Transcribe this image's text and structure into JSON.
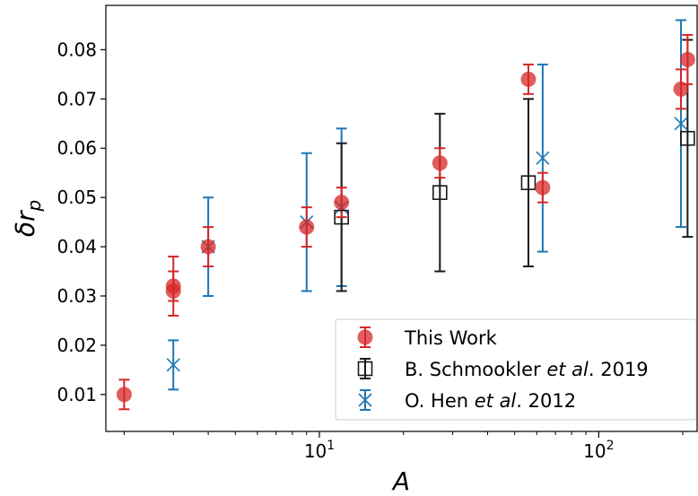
{
  "chart_data": {
    "type": "scatter",
    "title": "",
    "xlabel": "A",
    "ylabel": "δr_p",
    "xscale": "log",
    "xlim": [
      1.72,
      225
    ],
    "ylim": [
      0.0025,
      0.089
    ],
    "grid": false,
    "legend_position": "lower-right",
    "x_ticks": [
      {
        "value": 10,
        "base": "10",
        "exp": "1"
      },
      {
        "value": 100,
        "base": "10",
        "exp": "2"
      }
    ],
    "y_ticks": [
      {
        "value": 0.01,
        "label": "0.01"
      },
      {
        "value": 0.02,
        "label": "0.02"
      },
      {
        "value": 0.03,
        "label": "0.03"
      },
      {
        "value": 0.04,
        "label": "0.04"
      },
      {
        "value": 0.05,
        "label": "0.05"
      },
      {
        "value": 0.06,
        "label": "0.06"
      },
      {
        "value": 0.07,
        "label": "0.07"
      },
      {
        "value": 0.08,
        "label": "0.08"
      }
    ],
    "series": [
      {
        "name": "This Work",
        "marker": "circle",
        "color": "#d62728",
        "points": [
          {
            "x": 2,
            "y": 0.01,
            "lo": 0.007,
            "hi": 0.013
          },
          {
            "x": 3,
            "y": 0.032,
            "lo": 0.029,
            "hi": 0.035
          },
          {
            "x": 3,
            "y": 0.031,
            "lo": 0.026,
            "hi": 0.038
          },
          {
            "x": 4,
            "y": 0.04,
            "lo": 0.036,
            "hi": 0.044
          },
          {
            "x": 9,
            "y": 0.044,
            "lo": 0.04,
            "hi": 0.048
          },
          {
            "x": 12,
            "y": 0.049,
            "lo": 0.046,
            "hi": 0.052
          },
          {
            "x": 27,
            "y": 0.057,
            "lo": 0.054,
            "hi": 0.06
          },
          {
            "x": 56,
            "y": 0.074,
            "lo": 0.071,
            "hi": 0.077
          },
          {
            "x": 63,
            "y": 0.052,
            "lo": 0.049,
            "hi": 0.055
          },
          {
            "x": 197,
            "y": 0.072,
            "lo": 0.068,
            "hi": 0.076
          },
          {
            "x": 208,
            "y": 0.078,
            "lo": 0.073,
            "hi": 0.083
          }
        ]
      },
      {
        "name_main": "B. Schmookler ",
        "name_italic": "et al",
        "name_tail": ". 2019",
        "marker": "square",
        "color": "#1a1a1a",
        "points": [
          {
            "x": 12,
            "y": 0.046,
            "lo": 0.031,
            "hi": 0.061
          },
          {
            "x": 27,
            "y": 0.051,
            "lo": 0.035,
            "hi": 0.067
          },
          {
            "x": 56,
            "y": 0.053,
            "lo": 0.036,
            "hi": 0.07
          },
          {
            "x": 208,
            "y": 0.062,
            "lo": 0.042,
            "hi": 0.082
          }
        ]
      },
      {
        "name_main": "O. Hen ",
        "name_italic": "et al",
        "name_tail": ". 2012",
        "marker": "x",
        "color": "#1f77b4",
        "points": [
          {
            "x": 3,
            "y": 0.016,
            "lo": 0.011,
            "hi": 0.021
          },
          {
            "x": 4,
            "y": 0.04,
            "lo": 0.03,
            "hi": 0.05
          },
          {
            "x": 9,
            "y": 0.045,
            "lo": 0.031,
            "hi": 0.059
          },
          {
            "x": 12,
            "y": 0.048,
            "lo": 0.032,
            "hi": 0.064
          },
          {
            "x": 63,
            "y": 0.058,
            "lo": 0.039,
            "hi": 0.077
          },
          {
            "x": 197,
            "y": 0.065,
            "lo": 0.044,
            "hi": 0.086
          }
        ]
      }
    ]
  }
}
